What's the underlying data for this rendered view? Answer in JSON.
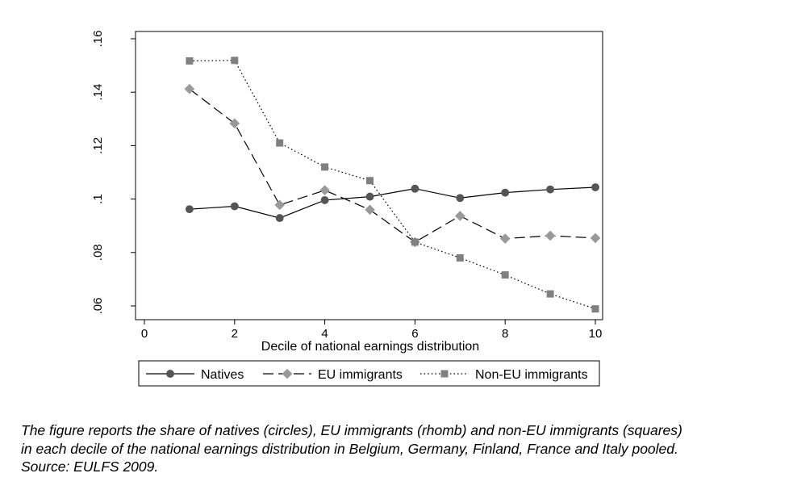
{
  "chart_data": {
    "type": "line",
    "title": "",
    "xlabel": "Decile of national earnings distribution",
    "ylabel": "",
    "xlim": [
      0,
      10
    ],
    "ylim": [
      0.06,
      0.16
    ],
    "x_ticks": [
      0,
      2,
      4,
      6,
      8,
      10
    ],
    "x_tick_labels": [
      "0",
      "2",
      "4",
      "6",
      "8",
      "10"
    ],
    "y_ticks": [
      0.06,
      0.08,
      0.1,
      0.12,
      0.14,
      0.16
    ],
    "y_tick_labels": [
      ".06",
      ".08",
      ".1",
      ".12",
      ".14",
      ".16"
    ],
    "grid": false,
    "legend_position": "bottom",
    "x": [
      1,
      2,
      3,
      4,
      5,
      6,
      7,
      8,
      9,
      10
    ],
    "series": [
      {
        "name": "Natives",
        "values": [
          0.0962,
          0.0973,
          0.0929,
          0.0996,
          0.1009,
          0.1039,
          0.1004,
          0.1024,
          0.1036,
          0.1044
        ],
        "color": "#555555",
        "line_style": "solid",
        "marker": "circle"
      },
      {
        "name": "EU immigrants",
        "values": [
          0.1412,
          0.1283,
          0.0978,
          0.1033,
          0.096,
          0.0839,
          0.0937,
          0.0852,
          0.0863,
          0.0854
        ],
        "color": "#999999",
        "line_style": "dashed",
        "marker": "diamond"
      },
      {
        "name": "Non-EU immigrants",
        "values": [
          0.1517,
          0.1519,
          0.121,
          0.112,
          0.1069,
          0.0839,
          0.078,
          0.0716,
          0.0645,
          0.0589
        ],
        "color": "#808080",
        "line_style": "dotted",
        "marker": "square"
      }
    ]
  },
  "caption": {
    "line1": "The figure reports the share of natives (circles), EU immigrants (rhomb) and non-EU immigrants (squares)",
    "line2": "in each decile of the national earnings distribution in Belgium, Germany, Finland, France and Italy pooled.",
    "line3": "Source: EULFS 2009."
  }
}
